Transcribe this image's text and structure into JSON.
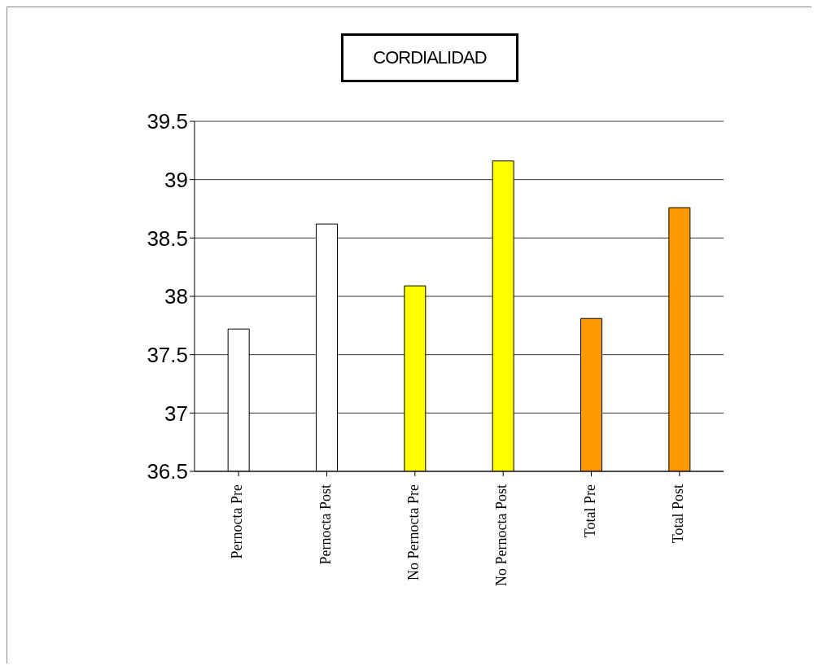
{
  "chart_data": {
    "type": "bar",
    "title": "CORDIALIDAD",
    "categories": [
      "Pernocta Pre",
      "Pernocta Post",
      "No Pernocta Pre",
      "No Pernocta Post",
      "Total Pre",
      "Total Post"
    ],
    "values": [
      37.72,
      38.62,
      38.09,
      39.16,
      37.81,
      38.76
    ],
    "colors": [
      "#ffffff",
      "#ffffff",
      "#ffff00",
      "#ffff00",
      "#ff9900",
      "#ff9900"
    ],
    "ylim": [
      36.5,
      39.5
    ],
    "yticks": [
      36.5,
      37,
      37.5,
      38,
      38.5,
      39,
      39.5
    ],
    "grid": "y"
  }
}
